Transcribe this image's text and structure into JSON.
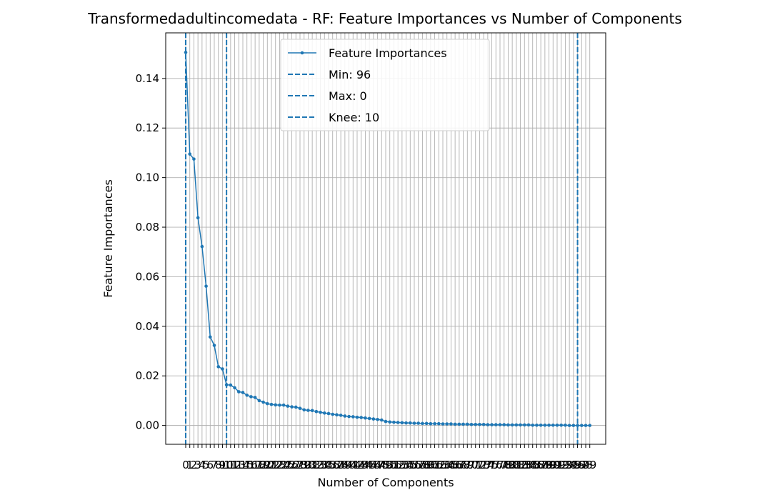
{
  "chart_data": {
    "type": "line",
    "title": "Transformedadultincomedata - RF: Feature Importances vs Number of Components",
    "xlabel": "Number of Components",
    "ylabel": "Feature Importances",
    "xlim": [
      -4.9,
      102.9
    ],
    "ylim": [
      -0.0076,
      0.1584
    ],
    "yticks": [
      0.0,
      0.02,
      0.04,
      0.06,
      0.08,
      0.1,
      0.12,
      0.14
    ],
    "ytick_labels": [
      "0.00",
      "0.02",
      "0.04",
      "0.06",
      "0.08",
      "0.10",
      "0.12",
      "0.14"
    ],
    "grid": true,
    "legend_position": "upper-center",
    "series": [
      {
        "name": "Feature Importances",
        "color": "#1f77b4",
        "x": [
          0,
          1,
          2,
          3,
          4,
          5,
          6,
          7,
          8,
          9,
          10,
          11,
          12,
          13,
          14,
          15,
          16,
          17,
          18,
          19,
          20,
          21,
          22,
          23,
          24,
          25,
          26,
          27,
          28,
          29,
          30,
          31,
          32,
          33,
          34,
          35,
          36,
          37,
          38,
          39,
          40,
          41,
          42,
          43,
          44,
          45,
          46,
          47,
          48,
          49,
          50,
          51,
          52,
          53,
          54,
          55,
          56,
          57,
          58,
          59,
          60,
          61,
          62,
          63,
          64,
          65,
          66,
          67,
          68,
          69,
          70,
          71,
          72,
          73,
          74,
          75,
          76,
          77,
          78,
          79,
          80,
          81,
          82,
          83,
          84,
          85,
          86,
          87,
          88,
          89,
          90,
          91,
          92,
          93,
          94,
          95,
          96,
          97,
          98,
          99
        ],
        "values": [
          0.1505,
          0.1095,
          0.1075,
          0.0838,
          0.0722,
          0.0562,
          0.0357,
          0.0323,
          0.0237,
          0.0228,
          0.0164,
          0.0163,
          0.0152,
          0.0136,
          0.0133,
          0.0122,
          0.0116,
          0.0113,
          0.01,
          0.0094,
          0.0088,
          0.0085,
          0.0083,
          0.0082,
          0.0082,
          0.0078,
          0.0075,
          0.0074,
          0.0069,
          0.0063,
          0.0061,
          0.006,
          0.0056,
          0.0053,
          0.005,
          0.0048,
          0.0045,
          0.0043,
          0.0041,
          0.0038,
          0.0036,
          0.0035,
          0.0033,
          0.0032,
          0.003,
          0.0028,
          0.0026,
          0.0024,
          0.0022,
          0.0016,
          0.0014,
          0.0013,
          0.0012,
          0.0011,
          0.001,
          0.001,
          0.0009,
          0.0009,
          0.0008,
          0.0008,
          0.0007,
          0.0007,
          0.0007,
          0.0006,
          0.0006,
          0.0006,
          0.0005,
          0.0005,
          0.0005,
          0.0005,
          0.0004,
          0.0004,
          0.0004,
          0.0004,
          0.0003,
          0.0003,
          0.0003,
          0.0003,
          0.0003,
          0.0002,
          0.0002,
          0.0002,
          0.0002,
          0.0002,
          0.0002,
          0.0001,
          0.0001,
          0.0001,
          0.0001,
          0.0001,
          0.0001,
          0.0001,
          0.0001,
          0.0001,
          0.0,
          0.0,
          0.0,
          0.0,
          0.0,
          0.0
        ]
      }
    ],
    "vlines": [
      {
        "label": "Min: 96",
        "x": 96,
        "color": "#1f77b4",
        "style": "dashed"
      },
      {
        "label": "Max: 0",
        "x": 0,
        "color": "#1f77b4",
        "style": "dashed"
      },
      {
        "label": "Knee: 10",
        "x": 10,
        "color": "#1f77b4",
        "style": "dashed"
      }
    ]
  }
}
